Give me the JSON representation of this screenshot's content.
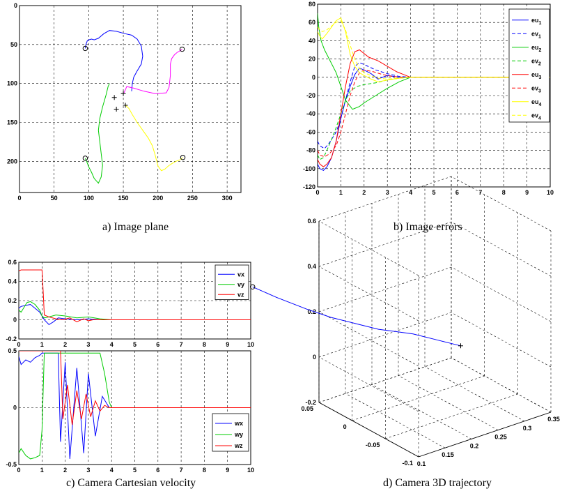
{
  "captions": {
    "a": "a) Image plane",
    "b": "b) Image errors",
    "c": "c) Camera Cartesian velocity",
    "d": "d) Camera 3D trajectory"
  },
  "colors": {
    "blue": "#0000ff",
    "green": "#00cc00",
    "red": "#ff0000",
    "magenta": "#ff00ff",
    "yellow": "#ffff00",
    "black": "#000000"
  },
  "chart_data": [
    {
      "id": "image_plane",
      "type": "line",
      "xlim": [
        0,
        320
      ],
      "ylim": [
        0,
        240
      ],
      "y_reversed": true,
      "grid": true,
      "xticks": [
        "0",
        "50",
        "100",
        "150",
        "200",
        "250",
        "300"
      ],
      "yticks": [
        "0",
        "50",
        "100",
        "150",
        "200"
      ],
      "series": [
        {
          "color": "blue",
          "x": [
            95,
            96,
            98,
            100,
            104,
            108,
            114,
            122,
            130,
            140,
            152,
            162,
            170,
            176,
            178,
            176,
            170,
            165,
            163,
            162
          ],
          "y": [
            55,
            50,
            45,
            44,
            43,
            44,
            42,
            36,
            32,
            33,
            36,
            38,
            43,
            52,
            65,
            75,
            84,
            92,
            100,
            110
          ]
        },
        {
          "color": "magenta",
          "x": [
            235,
            232,
            228,
            224,
            220,
            218,
            218,
            216,
            212,
            196,
            180,
            165,
            155,
            151
          ],
          "y": [
            56,
            58,
            60,
            63,
            68,
            75,
            90,
            105,
            112,
            113,
            110,
            106,
            104,
            112
          ]
        },
        {
          "color": "green",
          "x": [
            95,
            97,
            100,
            104,
            108,
            114,
            118,
            120,
            118,
            116,
            114,
            116,
            120,
            125,
            128,
            130
          ],
          "y": [
            196,
            200,
            207,
            214,
            222,
            228,
            220,
            205,
            190,
            175,
            160,
            145,
            130,
            115,
            104,
            100
          ]
        },
        {
          "color": "yellow",
          "x": [
            236,
            232,
            226,
            220,
            215,
            210,
            205,
            200,
            196,
            192,
            186,
            178,
            170,
            163,
            158,
            153
          ],
          "y": [
            195,
            198,
            200,
            203,
            206,
            210,
            212,
            206,
            192,
            180,
            170,
            160,
            150,
            140,
            132,
            128
          ]
        }
      ],
      "start_markers": [
        [
          95,
          55
        ],
        [
          235,
          56
        ],
        [
          95,
          196
        ],
        [
          236,
          195
        ]
      ],
      "goal_markers": [
        [
          137,
          118
        ],
        [
          140,
          133
        ],
        [
          150,
          113
        ],
        [
          153,
          128
        ]
      ]
    },
    {
      "id": "image_errors",
      "type": "line",
      "xlim": [
        0,
        10
      ],
      "ylim": [
        -120,
        80
      ],
      "grid": true,
      "legend": "top-right",
      "xticks": [
        "0",
        "1",
        "2",
        "3",
        "4",
        "5",
        "6",
        "7",
        "8",
        "9",
        "10"
      ],
      "yticks": [
        "80",
        "60",
        "40",
        "20",
        "0",
        "-20",
        "-40",
        "-60",
        "-80",
        "-100",
        "-120"
      ],
      "series": [
        {
          "name": "eu",
          "sub": "1",
          "color": "blue",
          "dash": "solid",
          "x": [
            0,
            0.1,
            0.25,
            0.4,
            0.6,
            0.8,
            1.0,
            1.2,
            1.4,
            1.6,
            1.8,
            2.0,
            2.3,
            2.6,
            3.0,
            3.5,
            4,
            5,
            10
          ],
          "y": [
            -95,
            -100,
            -102,
            -98,
            -88,
            -70,
            -45,
            -25,
            -10,
            3,
            10,
            8,
            4,
            -2,
            2,
            0,
            0,
            0,
            0
          ]
        },
        {
          "name": "ev",
          "sub": "1",
          "color": "blue",
          "dash": "dashed",
          "x": [
            0,
            0.1,
            0.3,
            0.5,
            0.8,
            1.0,
            1.2,
            1.4,
            1.6,
            1.8,
            2.0,
            2.5,
            3.0,
            3.5,
            4,
            5,
            10
          ],
          "y": [
            -70,
            -75,
            -78,
            -72,
            -60,
            -45,
            -25,
            -5,
            12,
            16,
            14,
            8,
            4,
            1,
            0,
            0,
            0
          ]
        },
        {
          "name": "eu",
          "sub": "2",
          "color": "green",
          "dash": "solid",
          "x": [
            0,
            0.05,
            0.15,
            0.3,
            0.5,
            0.8,
            1.0,
            1.2,
            1.5,
            1.8,
            2.0,
            2.5,
            3.0,
            3.5,
            4,
            5,
            10
          ],
          "y": [
            70,
            55,
            40,
            30,
            20,
            5,
            -10,
            -25,
            -35,
            -32,
            -28,
            -20,
            -12,
            -5,
            0,
            0,
            0
          ]
        },
        {
          "name": "ev",
          "sub": "2",
          "color": "green",
          "dash": "dashed",
          "x": [
            0,
            0.1,
            0.25,
            0.4,
            0.6,
            0.8,
            1.0,
            1.2,
            1.4,
            1.7,
            2.0,
            2.5,
            3.0,
            3.5,
            4,
            5,
            10
          ],
          "y": [
            -85,
            -90,
            -88,
            -80,
            -68,
            -55,
            -40,
            -25,
            -15,
            -10,
            -8,
            -6,
            -3,
            -1,
            0,
            0,
            0
          ]
        },
        {
          "name": "eu",
          "sub": "3",
          "color": "red",
          "dash": "solid",
          "x": [
            0,
            0.1,
            0.25,
            0.4,
            0.6,
            0.8,
            1.0,
            1.2,
            1.4,
            1.6,
            1.8,
            2.2,
            2.6,
            3.0,
            3.4,
            3.8,
            4,
            5,
            10
          ],
          "y": [
            -90,
            -95,
            -98,
            -95,
            -88,
            -70,
            -40,
            -10,
            15,
            28,
            30,
            22,
            18,
            12,
            6,
            2,
            0,
            0,
            0
          ]
        },
        {
          "name": "ev",
          "sub": "3",
          "color": "red",
          "dash": "dashed",
          "x": [
            0,
            0.1,
            0.3,
            0.5,
            0.8,
            1.0,
            1.2,
            1.4,
            1.6,
            1.8,
            2.0,
            2.4,
            2.8,
            3.2,
            3.6,
            4,
            5,
            10
          ],
          "y": [
            -80,
            -85,
            -87,
            -84,
            -75,
            -60,
            -40,
            -20,
            -5,
            5,
            8,
            6,
            3,
            1,
            0,
            0,
            0,
            0
          ]
        },
        {
          "name": "eu",
          "sub": "4",
          "color": "yellow",
          "dash": "solid",
          "x": [
            0,
            0.1,
            0.2,
            0.4,
            0.6,
            0.8,
            1.0,
            1.2,
            1.4,
            1.6,
            1.8,
            2.0,
            2.3,
            2.6,
            3.0,
            3.5,
            4,
            5,
            10
          ],
          "y": [
            50,
            45,
            42,
            48,
            55,
            62,
            65,
            50,
            25,
            12,
            5,
            2,
            -2,
            -5,
            -3,
            -1,
            0,
            0,
            0
          ]
        },
        {
          "name": "ev",
          "sub": "4",
          "color": "yellow",
          "dash": "dashed",
          "x": [
            0,
            0.1,
            0.2,
            0.4,
            0.6,
            0.8,
            1.0,
            1.2,
            1.4,
            1.6,
            1.8,
            2.0,
            2.3,
            2.6,
            3.0,
            3.5,
            4,
            5,
            10
          ],
          "y": [
            55,
            52,
            50,
            52,
            56,
            60,
            62,
            52,
            35,
            20,
            10,
            5,
            2,
            -1,
            -2,
            -1,
            0,
            0,
            0
          ]
        }
      ]
    },
    {
      "id": "linear_velocity",
      "type": "line",
      "xlim": [
        0,
        10
      ],
      "ylim": [
        -0.2,
        0.6
      ],
      "grid": true,
      "legend": "top-right",
      "xticks": [
        "0",
        "1",
        "2",
        "3",
        "4",
        "5",
        "6",
        "7",
        "8",
        "9",
        "10"
      ],
      "yticks": [
        "0.6",
        "0.4",
        "0.2",
        "0",
        "-0.2"
      ],
      "series": [
        {
          "name": "vx",
          "color": "blue",
          "x": [
            0,
            0.1,
            0.3,
            0.5,
            0.7,
            0.9,
            1.1,
            1.3,
            1.5,
            1.7,
            2.0,
            2.5,
            3.0,
            3.5,
            3.8,
            4,
            5,
            10
          ],
          "y": [
            0.12,
            0.14,
            0.15,
            0.16,
            0.12,
            0.08,
            0.0,
            -0.05,
            -0.02,
            0.02,
            0.01,
            0.0,
            0.01,
            0.0,
            0.0,
            0,
            0,
            0
          ]
        },
        {
          "name": "vy",
          "color": "green",
          "x": [
            0,
            0.1,
            0.2,
            0.35,
            0.5,
            0.7,
            0.9,
            1.0,
            1.1,
            1.3,
            1.6,
            2.0,
            2.5,
            3.0,
            3.5,
            4,
            5,
            10
          ],
          "y": [
            0.1,
            0.08,
            0.12,
            0.18,
            0.19,
            0.16,
            0.1,
            0.04,
            0.02,
            0.03,
            0.05,
            0.04,
            0.02,
            0.03,
            0.01,
            0,
            0,
            0
          ]
        },
        {
          "name": "vz",
          "color": "red",
          "x": [
            0,
            0.1,
            0.5,
            0.9,
            1.0,
            1.05,
            1.1,
            1.3,
            1.6,
            1.9,
            2.2,
            2.5,
            2.8,
            3.0,
            3.2,
            10
          ],
          "y": [
            0.51,
            0.52,
            0.52,
            0.52,
            0.52,
            0.3,
            0.05,
            0.03,
            0.01,
            0.0,
            0.02,
            -0.02,
            0.01,
            -0.01,
            0,
            0
          ]
        }
      ]
    },
    {
      "id": "angular_velocity",
      "type": "line",
      "xlim": [
        0,
        10
      ],
      "ylim": [
        -0.5,
        0.5
      ],
      "grid": true,
      "legend": "top-right",
      "xticks": [
        "0",
        "1",
        "2",
        "3",
        "4",
        "5",
        "6",
        "7",
        "8",
        "9",
        "10"
      ],
      "yticks": [
        "0.5",
        "0",
        "-0.5"
      ],
      "series": [
        {
          "name": "wx",
          "color": "blue",
          "x": [
            0,
            0.1,
            0.3,
            0.5,
            0.7,
            0.9,
            1.0,
            1.2,
            1.5,
            1.7,
            1.8,
            2.0,
            2.2,
            2.5,
            2.8,
            3.0,
            3.3,
            3.6,
            3.9,
            4,
            5,
            10
          ],
          "y": [
            0.45,
            0.38,
            0.42,
            0.4,
            0.44,
            0.46,
            0.48,
            0.48,
            0.48,
            0.48,
            -0.3,
            0.4,
            -0.45,
            0.35,
            -0.4,
            0.3,
            -0.25,
            0.1,
            0.0,
            0,
            0,
            0
          ]
        },
        {
          "name": "wy",
          "color": "green",
          "x": [
            0,
            0.1,
            0.3,
            0.5,
            0.7,
            0.9,
            1.0,
            1.1,
            1.3,
            1.6,
            2.0,
            2.5,
            3.0,
            3.5,
            3.7,
            3.9,
            4,
            5,
            10
          ],
          "y": [
            -0.4,
            -0.36,
            -0.42,
            -0.45,
            -0.44,
            -0.42,
            -0.2,
            0.48,
            0.48,
            0.48,
            0.48,
            0.48,
            0.48,
            0.48,
            0.3,
            0.05,
            0,
            0,
            0
          ]
        },
        {
          "name": "wz",
          "color": "red",
          "x": [
            0,
            0.5,
            1.0,
            1.5,
            1.8,
            1.9,
            2.1,
            2.3,
            2.5,
            2.7,
            2.9,
            3.1,
            3.3,
            3.5,
            3.7,
            3.9,
            4,
            5,
            10
          ],
          "y": [
            0.5,
            0.5,
            0.5,
            0.5,
            0.5,
            -0.1,
            0.2,
            -0.15,
            0.15,
            -0.1,
            0.12,
            -0.08,
            0.06,
            -0.03,
            0.02,
            0.0,
            0,
            0,
            0
          ]
        }
      ]
    },
    {
      "id": "camera_3d_trajectory",
      "type": "line",
      "view": "3d",
      "zlim": [
        -0.2,
        0.6
      ],
      "zticks": [
        "0.6",
        "0.4",
        "0.2",
        "0",
        "-0.2"
      ],
      "xticks": [
        "0.1",
        "0.15",
        "0.2",
        "0.25",
        "0.3",
        "0.35"
      ],
      "yticks": [
        "0.05",
        "0",
        "-0.05",
        "-0.1"
      ],
      "trajectory": {
        "color": "blue",
        "x": [
          0.1,
          0.12,
          0.14,
          0.16,
          0.18,
          0.2,
          0.22,
          0.24,
          0.26,
          0.28
        ],
        "y": [
          0.15,
          0.13,
          0.1,
          0.08,
          0.06,
          0.04,
          0.03,
          0.02,
          0.0,
          -0.02
        ],
        "z": [
          0.15,
          0.12,
          0.1,
          0.08,
          0.07,
          0.06,
          0.05,
          0.04,
          0.03,
          0.02
        ]
      }
    }
  ]
}
